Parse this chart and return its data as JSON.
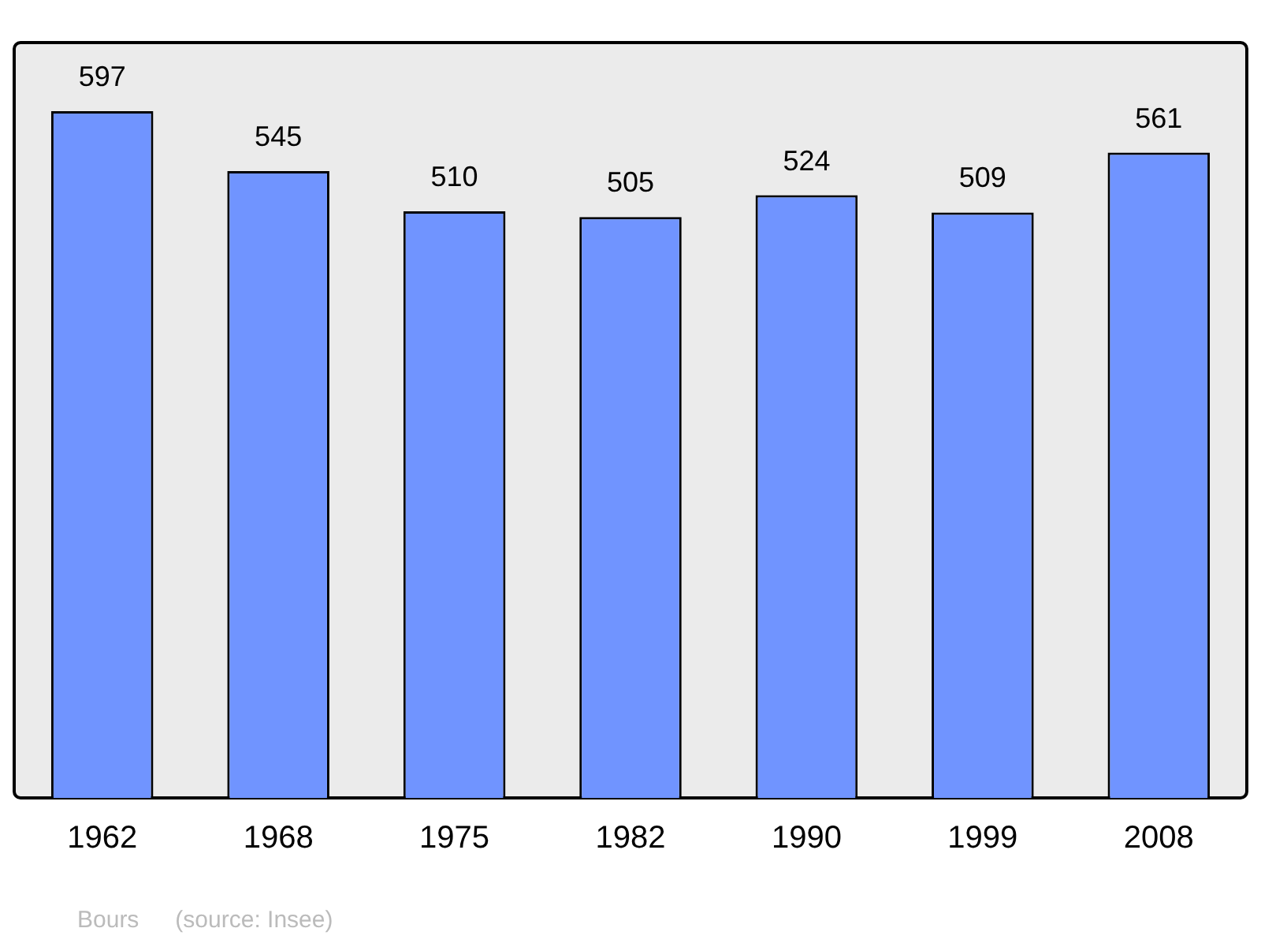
{
  "chart_data": {
    "type": "bar",
    "categories": [
      "1962",
      "1968",
      "1975",
      "1982",
      "1990",
      "1999",
      "2008"
    ],
    "values": [
      597,
      545,
      510,
      505,
      524,
      509,
      561
    ],
    "color": "#7094ff",
    "data_labels": true,
    "grid": false,
    "legend": false,
    "annotations": [
      "Bours",
      "(source: Insee)"
    ]
  }
}
